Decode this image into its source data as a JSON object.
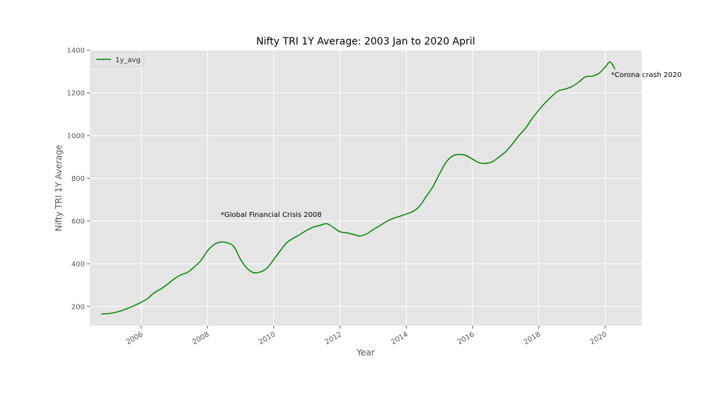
{
  "chart_data": {
    "type": "line",
    "title": "Nifty TRI 1Y Average: 2003 Jan to 2020 April",
    "xlabel": "Year",
    "ylabel": "Nifty TRI 1Y Average",
    "xlim": [
      2004.45,
      2021.1
    ],
    "ylim": [
      110,
      1400
    ],
    "x_ticks": [
      2006,
      2008,
      2010,
      2012,
      2014,
      2016,
      2018,
      2020
    ],
    "x_tick_labels": [
      "2006",
      "2008",
      "2010",
      "2012",
      "2014",
      "2016",
      "2018",
      "2020"
    ],
    "y_ticks": [
      200,
      400,
      600,
      800,
      1000,
      1200,
      1400
    ],
    "y_tick_labels": [
      "200",
      "400",
      "600",
      "800",
      "1000",
      "1200",
      "1400"
    ],
    "grid": true,
    "legend_position": "top-left",
    "series": [
      {
        "name": "1y_avg",
        "color": "#008000",
        "x": [
          2004.8,
          2005.0,
          2005.2,
          2005.4,
          2005.6,
          2005.8,
          2006.0,
          2006.2,
          2006.4,
          2006.6,
          2006.8,
          2007.0,
          2007.2,
          2007.4,
          2007.6,
          2007.8,
          2008.0,
          2008.2,
          2008.4,
          2008.6,
          2008.8,
          2009.0,
          2009.2,
          2009.4,
          2009.6,
          2009.8,
          2010.0,
          2010.2,
          2010.4,
          2010.6,
          2010.8,
          2011.0,
          2011.2,
          2011.4,
          2011.6,
          2011.8,
          2012.0,
          2012.2,
          2012.4,
          2012.6,
          2012.8,
          2013.0,
          2013.2,
          2013.4,
          2013.6,
          2013.8,
          2014.0,
          2014.2,
          2014.4,
          2014.6,
          2014.8,
          2015.0,
          2015.2,
          2015.4,
          2015.6,
          2015.8,
          2016.0,
          2016.2,
          2016.4,
          2016.6,
          2016.8,
          2017.0,
          2017.2,
          2017.4,
          2017.6,
          2017.8,
          2018.0,
          2018.2,
          2018.4,
          2018.6,
          2018.8,
          2019.0,
          2019.2,
          2019.4,
          2019.6,
          2019.8,
          2020.0,
          2020.15,
          2020.3
        ],
        "values": [
          165,
          167,
          172,
          180,
          192,
          205,
          220,
          238,
          265,
          283,
          305,
          330,
          348,
          360,
          385,
          415,
          460,
          490,
          502,
          498,
          480,
          420,
          378,
          358,
          362,
          380,
          420,
          462,
          500,
          520,
          538,
          557,
          572,
          580,
          588,
          570,
          550,
          545,
          538,
          530,
          540,
          560,
          578,
          598,
          612,
          622,
          633,
          645,
          670,
          715,
          760,
          820,
          875,
          905,
          912,
          907,
          890,
          873,
          870,
          878,
          900,
          925,
          960,
          1000,
          1035,
          1080,
          1120,
          1155,
          1185,
          1210,
          1218,
          1230,
          1250,
          1275,
          1278,
          1290,
          1320,
          1345,
          1310
        ]
      }
    ],
    "annotations": [
      {
        "text": "*Global Financial Crisis 2008",
        "x": 2008.4,
        "y": 620
      },
      {
        "text": "*Corona crash 2020",
        "x": 2020.18,
        "y": 1275
      }
    ]
  }
}
